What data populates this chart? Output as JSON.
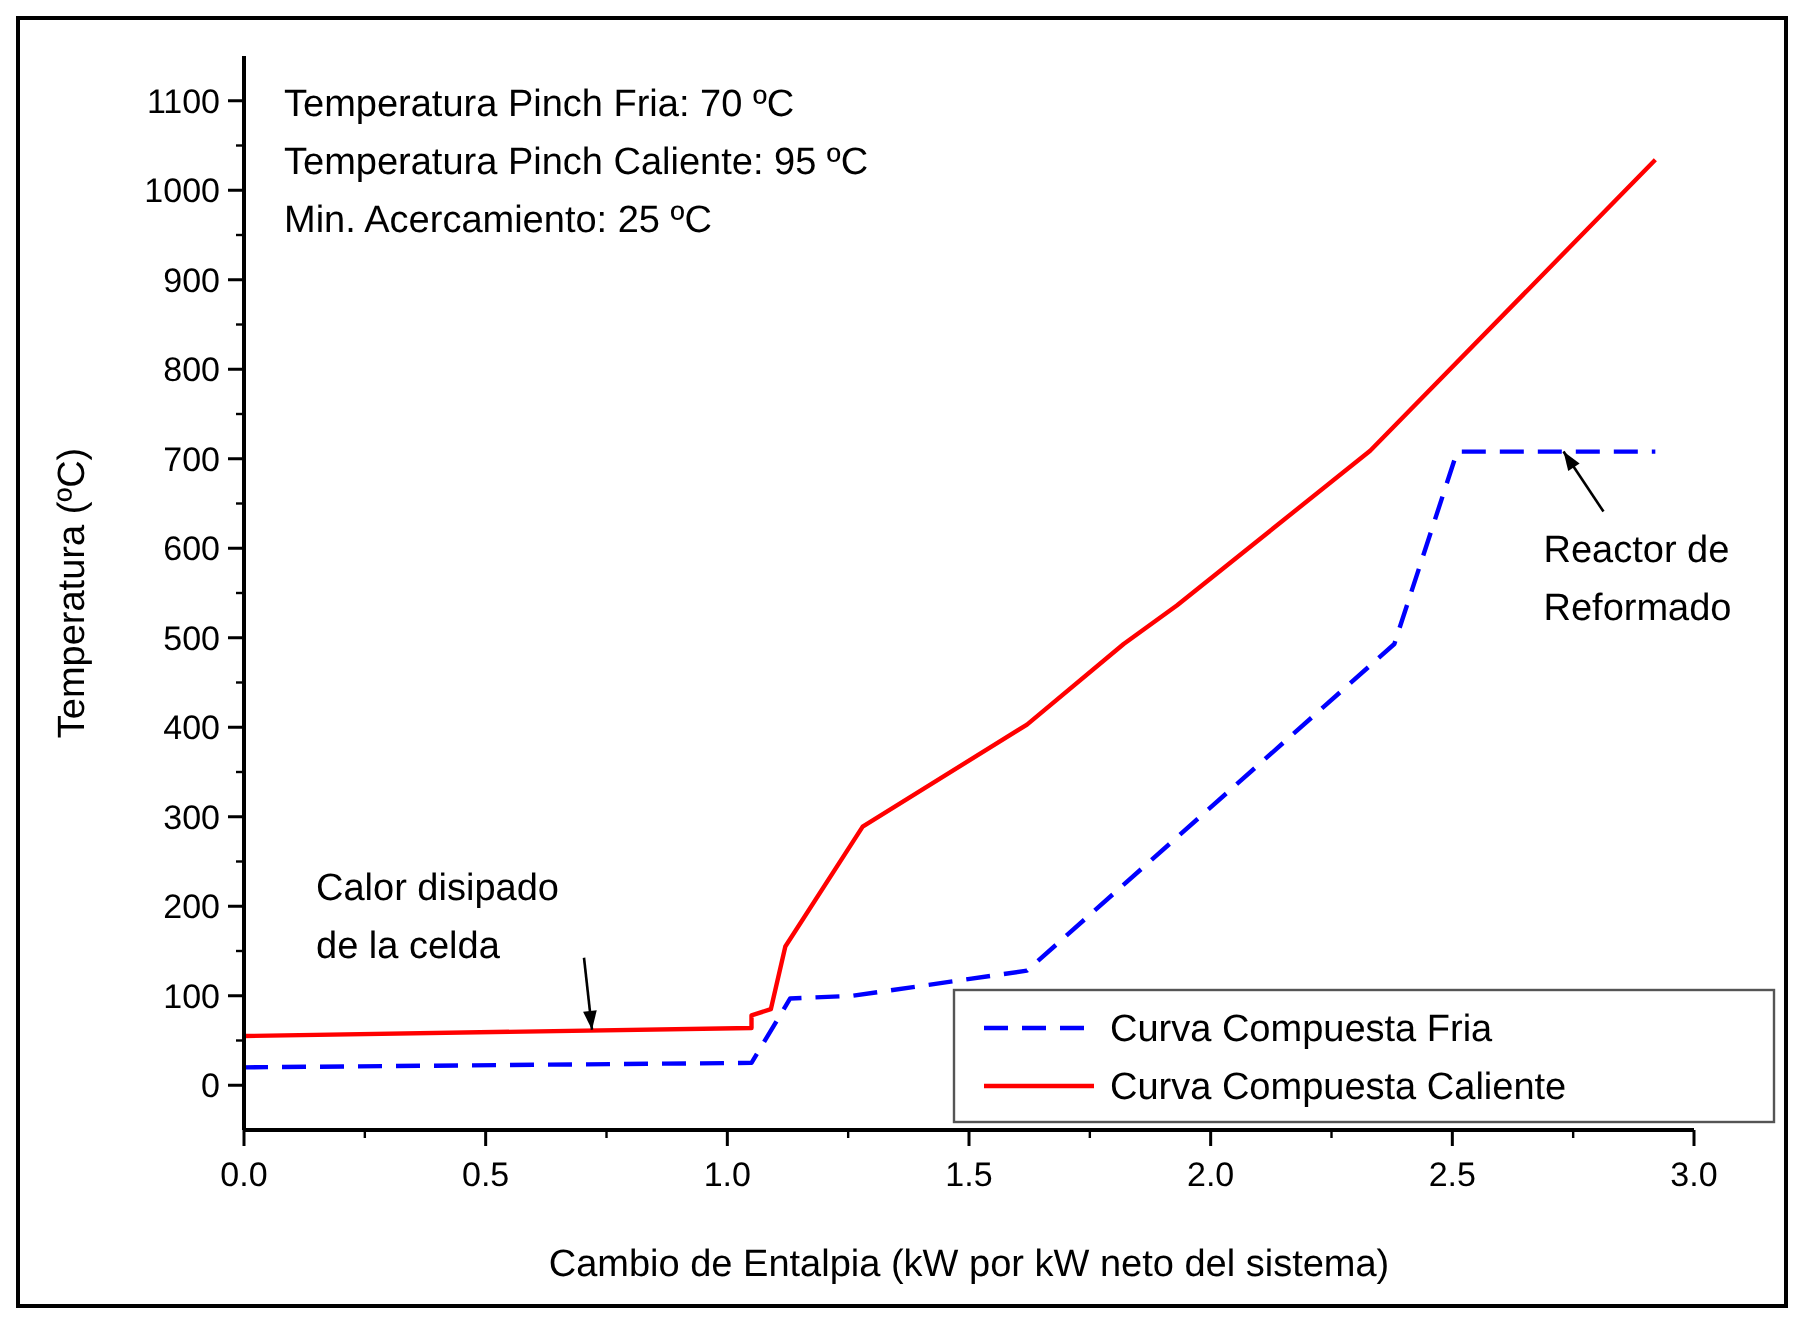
{
  "chart_data": {
    "type": "line",
    "xlabel": "Cambio de Entalpia (kW por kW neto del sistema)",
    "ylabel": "Temperatura (ºC)",
    "xlim": [
      0,
      3
    ],
    "xticks": [
      {
        "value": 0,
        "label": "0.0"
      },
      0.5,
      {
        "value": 1,
        "label": "1.0"
      },
      1.5,
      {
        "value": 2,
        "label": "2.0"
      },
      2.5,
      {
        "value": 3,
        "label": "3.0"
      }
    ],
    "ylim": [
      -50,
      1150
    ],
    "yticks": [
      0,
      100,
      200,
      300,
      400,
      500,
      600,
      700,
      800,
      900,
      1000,
      1100
    ],
    "grid": false,
    "legend": "bottom right",
    "marker": "none",
    "series": [
      {
        "name": "Curva Compuesta Fria",
        "color": "#0000ff",
        "line_style": "dashed",
        "x": [
          0,
          1.05,
          1.13,
          1.26,
          1.62,
          2.38,
          2.51,
          2.92
        ],
        "values": [
          20,
          25,
          97,
          100,
          128,
          493,
          708,
          708
        ]
      },
      {
        "name": "Curva Compuesta Caliente",
        "color": "#ff0000",
        "line_style": "solid",
        "x": [
          0,
          1.05,
          1.05,
          1.09,
          1.12,
          1.28,
          1.62,
          1.82,
          1.93,
          2.33,
          2.92
        ],
        "values": [
          55,
          64,
          78,
          85,
          155,
          289,
          403,
          493,
          536,
          709,
          1034
        ]
      }
    ],
    "annotations": [
      "Temperatura Pinch Fria: 70 ºC",
      "Temperatura Pinch Caliente: 95 ºC",
      "Min. Acercamiento: 25 ºC",
      {
        "text": "Calor disipado\nde la celda",
        "x": 0.72,
        "y": 62
      },
      {
        "text": "Reactor de\nReformado",
        "x": 2.73,
        "y": 708
      }
    ]
  }
}
